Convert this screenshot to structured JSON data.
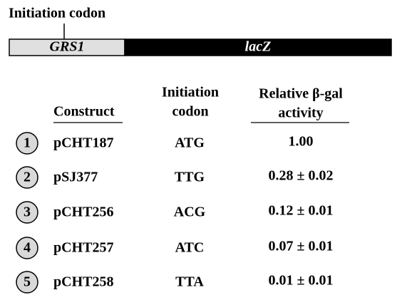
{
  "diagram": {
    "label": "Initiation codon",
    "genes": [
      "GRS1",
      "lacZ"
    ]
  },
  "table": {
    "header": {
      "construct": "Construct",
      "codon": [
        "Initiation",
        "codon"
      ],
      "activity": [
        "Relative β-gal",
        "activity"
      ]
    },
    "rows": [
      [
        "1",
        "pCHT187",
        "ATG",
        "1.00"
      ],
      [
        "2",
        "pSJ377",
        "TTG",
        "0.28 ± 0.02"
      ],
      [
        "3",
        "pCHT256",
        "ACG",
        "0.12 ± 0.01"
      ],
      [
        "4",
        "pCHT257",
        "ATC",
        "0.07 ± 0.01"
      ],
      [
        "5",
        "pCHT258",
        "TTA",
        "0.01 ± 0.01"
      ]
    ]
  }
}
